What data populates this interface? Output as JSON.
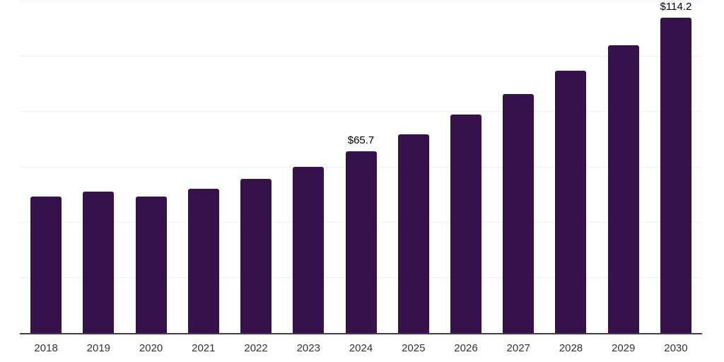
{
  "chart_data": {
    "type": "bar",
    "categories": [
      "2018",
      "2019",
      "2020",
      "2021",
      "2022",
      "2023",
      "2024",
      "2025",
      "2026",
      "2027",
      "2028",
      "2029",
      "2030"
    ],
    "values": [
      49.3,
      51.1,
      49.4,
      52.1,
      55.7,
      60.2,
      65.7,
      72.0,
      79.0,
      86.6,
      95.0,
      104.1,
      114.2
    ],
    "data_labels": [
      {
        "index": 6,
        "text": "$65.7"
      },
      {
        "index": 12,
        "text": "$114.2"
      }
    ],
    "title": "",
    "xlabel": "",
    "ylabel": "",
    "ylim": [
      0,
      120
    ],
    "grid_step": 20,
    "grid": "horizontal",
    "legend": "none",
    "colors": {
      "bar": "#36124A",
      "axis": "#424242",
      "gridline": "#efefef",
      "tick_label": "#333333",
      "value_label": "#000000",
      "background": "#ffffff"
    }
  }
}
